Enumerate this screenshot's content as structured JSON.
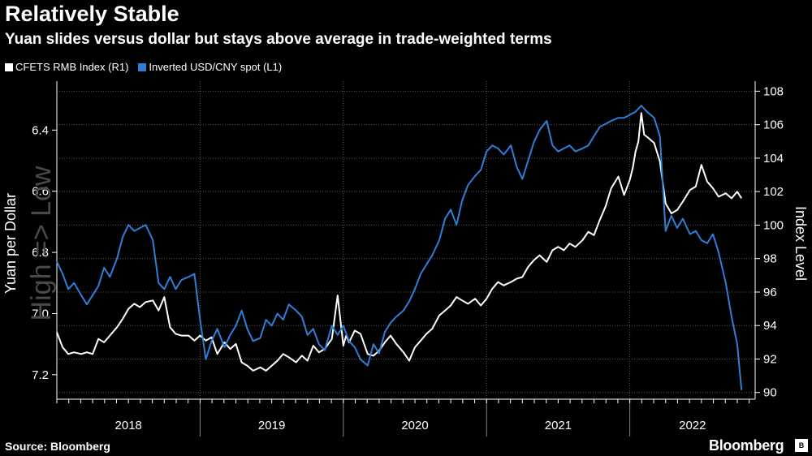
{
  "header": {
    "title": "Relatively Stable",
    "subtitle": "Yuan slides versus dollar but stays above average in trade-weighted terms"
  },
  "footer": {
    "source": "Source: Bloomberg",
    "brand": "Bloomberg"
  },
  "colors": {
    "cfets": "#ffffff",
    "usdcny": "#2f7ed8",
    "grid": "#5a5a5a",
    "background": "#000000"
  },
  "chart_data": {
    "type": "line",
    "title": "Relatively Stable",
    "subtitle": "Yuan slides versus dollar but stays above average in trade-weighted terms",
    "watermark": "High => Low",
    "x_ticks": [
      "2018",
      "2019",
      "2020",
      "2021",
      "2022"
    ],
    "x_range": [
      2018.0,
      2022.875
    ],
    "left_axis": {
      "label": "Yuan per Dollar",
      "ticks": [
        "6.4",
        "6.6",
        "6.8",
        "7.0",
        "7.2"
      ],
      "range": [
        7.28,
        6.24
      ],
      "inverted": true
    },
    "right_axis": {
      "label": "Index Level",
      "ticks": [
        "90",
        "92",
        "94",
        "96",
        "98",
        "100",
        "102",
        "104",
        "106",
        "108"
      ],
      "range": [
        89.6,
        108.6
      ]
    },
    "legend": "top-left",
    "series": [
      {
        "name": "CFETS RMB Index (R1)",
        "axis": "right",
        "points": [
          [
            2018.0,
            93.6
          ],
          [
            2018.04,
            92.7
          ],
          [
            2018.08,
            92.3
          ],
          [
            2018.12,
            92.4
          ],
          [
            2018.17,
            92.3
          ],
          [
            2018.21,
            92.4
          ],
          [
            2018.25,
            92.3
          ],
          [
            2018.29,
            93.2
          ],
          [
            2018.33,
            93.0
          ],
          [
            2018.37,
            93.4
          ],
          [
            2018.42,
            93.9
          ],
          [
            2018.46,
            94.4
          ],
          [
            2018.5,
            95.0
          ],
          [
            2018.54,
            95.3
          ],
          [
            2018.58,
            95.1
          ],
          [
            2018.62,
            95.4
          ],
          [
            2018.67,
            95.5
          ],
          [
            2018.71,
            94.9
          ],
          [
            2018.75,
            95.7
          ],
          [
            2018.79,
            93.9
          ],
          [
            2018.83,
            93.5
          ],
          [
            2018.87,
            93.4
          ],
          [
            2018.92,
            93.4
          ],
          [
            2018.96,
            93.1
          ],
          [
            2019.0,
            93.4
          ],
          [
            2019.04,
            93.1
          ],
          [
            2019.08,
            93.3
          ],
          [
            2019.12,
            92.3
          ],
          [
            2019.17,
            93.0
          ],
          [
            2019.21,
            92.6
          ],
          [
            2019.25,
            92.9
          ],
          [
            2019.29,
            91.8
          ],
          [
            2019.33,
            91.6
          ],
          [
            2019.37,
            91.3
          ],
          [
            2019.42,
            91.5
          ],
          [
            2019.46,
            91.3
          ],
          [
            2019.5,
            91.6
          ],
          [
            2019.54,
            91.9
          ],
          [
            2019.58,
            92.3
          ],
          [
            2019.62,
            92.1
          ],
          [
            2019.67,
            91.8
          ],
          [
            2019.71,
            92.2
          ],
          [
            2019.75,
            91.9
          ],
          [
            2019.79,
            92.8
          ],
          [
            2019.83,
            92.4
          ],
          [
            2019.87,
            92.6
          ],
          [
            2019.92,
            93.2
          ],
          [
            2019.96,
            95.8
          ],
          [
            2020.0,
            92.8
          ],
          [
            2020.02,
            93.4
          ],
          [
            2020.04,
            93.0
          ],
          [
            2020.08,
            93.7
          ],
          [
            2020.12,
            93.5
          ],
          [
            2020.17,
            92.3
          ],
          [
            2020.21,
            92.2
          ],
          [
            2020.25,
            92.5
          ],
          [
            2020.29,
            93.0
          ],
          [
            2020.33,
            93.4
          ],
          [
            2020.37,
            92.9
          ],
          [
            2020.42,
            92.4
          ],
          [
            2020.46,
            91.9
          ],
          [
            2020.5,
            92.7
          ],
          [
            2020.54,
            93.1
          ],
          [
            2020.58,
            93.5
          ],
          [
            2020.62,
            93.8
          ],
          [
            2020.67,
            94.6
          ],
          [
            2020.71,
            94.9
          ],
          [
            2020.75,
            95.2
          ],
          [
            2020.79,
            95.7
          ],
          [
            2020.83,
            95.5
          ],
          [
            2020.87,
            95.3
          ],
          [
            2020.92,
            95.6
          ],
          [
            2020.96,
            95.2
          ],
          [
            2021.0,
            95.6
          ],
          [
            2021.04,
            96.2
          ],
          [
            2021.08,
            96.6
          ],
          [
            2021.12,
            96.4
          ],
          [
            2021.17,
            96.6
          ],
          [
            2021.21,
            96.8
          ],
          [
            2021.25,
            96.9
          ],
          [
            2021.29,
            97.5
          ],
          [
            2021.33,
            97.9
          ],
          [
            2021.37,
            98.2
          ],
          [
            2021.42,
            97.8
          ],
          [
            2021.46,
            98.5
          ],
          [
            2021.5,
            98.7
          ],
          [
            2021.54,
            98.5
          ],
          [
            2021.58,
            98.9
          ],
          [
            2021.62,
            98.7
          ],
          [
            2021.67,
            99.1
          ],
          [
            2021.71,
            99.6
          ],
          [
            2021.75,
            99.4
          ],
          [
            2021.79,
            100.3
          ],
          [
            2021.83,
            101.1
          ],
          [
            2021.87,
            102.2
          ],
          [
            2021.92,
            102.9
          ],
          [
            2021.96,
            101.8
          ],
          [
            2022.0,
            102.7
          ],
          [
            2022.02,
            103.4
          ],
          [
            2022.04,
            104.4
          ],
          [
            2022.06,
            105.0
          ],
          [
            2022.08,
            106.7
          ],
          [
            2022.1,
            105.4
          ],
          [
            2022.13,
            105.2
          ],
          [
            2022.17,
            104.9
          ],
          [
            2022.21,
            103.8
          ],
          [
            2022.25,
            101.3
          ],
          [
            2022.29,
            100.7
          ],
          [
            2022.33,
            100.9
          ],
          [
            2022.37,
            101.4
          ],
          [
            2022.42,
            102.1
          ],
          [
            2022.46,
            102.3
          ],
          [
            2022.5,
            103.6
          ],
          [
            2022.54,
            102.6
          ],
          [
            2022.58,
            102.2
          ],
          [
            2022.62,
            101.7
          ],
          [
            2022.67,
            101.9
          ],
          [
            2022.71,
            101.6
          ],
          [
            2022.75,
            102.0
          ],
          [
            2022.78,
            101.6
          ]
        ]
      },
      {
        "name": "Inverted USD/CNY spot (L1)",
        "axis": "left",
        "points": [
          [
            2018.0,
            6.83
          ],
          [
            2018.04,
            6.87
          ],
          [
            2018.08,
            6.92
          ],
          [
            2018.12,
            6.9
          ],
          [
            2018.17,
            6.94
          ],
          [
            2018.21,
            6.97
          ],
          [
            2018.25,
            6.94
          ],
          [
            2018.29,
            6.91
          ],
          [
            2018.33,
            6.85
          ],
          [
            2018.37,
            6.88
          ],
          [
            2018.42,
            6.82
          ],
          [
            2018.46,
            6.75
          ],
          [
            2018.5,
            6.71
          ],
          [
            2018.54,
            6.73
          ],
          [
            2018.58,
            6.72
          ],
          [
            2018.62,
            6.71
          ],
          [
            2018.67,
            6.76
          ],
          [
            2018.71,
            6.9
          ],
          [
            2018.75,
            6.92
          ],
          [
            2018.79,
            6.88
          ],
          [
            2018.83,
            6.92
          ],
          [
            2018.87,
            6.89
          ],
          [
            2018.92,
            6.88
          ],
          [
            2018.96,
            6.87
          ],
          [
            2019.0,
            7.02
          ],
          [
            2019.04,
            7.15
          ],
          [
            2019.08,
            7.09
          ],
          [
            2019.12,
            7.05
          ],
          [
            2019.17,
            7.11
          ],
          [
            2019.21,
            7.07
          ],
          [
            2019.25,
            7.04
          ],
          [
            2019.29,
            6.99
          ],
          [
            2019.33,
            7.05
          ],
          [
            2019.37,
            7.09
          ],
          [
            2019.42,
            7.08
          ],
          [
            2019.46,
            7.02
          ],
          [
            2019.5,
            7.04
          ],
          [
            2019.54,
            7.0
          ],
          [
            2019.58,
            7.02
          ],
          [
            2019.62,
            6.97
          ],
          [
            2019.67,
            6.99
          ],
          [
            2019.71,
            7.01
          ],
          [
            2019.75,
            7.07
          ],
          [
            2019.79,
            7.05
          ],
          [
            2019.83,
            7.1
          ],
          [
            2019.87,
            7.12
          ],
          [
            2019.92,
            7.04
          ],
          [
            2019.96,
            7.07
          ],
          [
            2020.0,
            7.04
          ],
          [
            2020.04,
            7.09
          ],
          [
            2020.08,
            7.11
          ],
          [
            2020.12,
            7.15
          ],
          [
            2020.17,
            7.17
          ],
          [
            2020.21,
            7.1
          ],
          [
            2020.25,
            7.13
          ],
          [
            2020.29,
            7.06
          ],
          [
            2020.33,
            7.03
          ],
          [
            2020.37,
            7.01
          ],
          [
            2020.42,
            6.99
          ],
          [
            2020.46,
            6.96
          ],
          [
            2020.5,
            6.92
          ],
          [
            2020.54,
            6.87
          ],
          [
            2020.58,
            6.84
          ],
          [
            2020.62,
            6.81
          ],
          [
            2020.67,
            6.76
          ],
          [
            2020.71,
            6.69
          ],
          [
            2020.75,
            6.66
          ],
          [
            2020.79,
            6.71
          ],
          [
            2020.83,
            6.63
          ],
          [
            2020.87,
            6.58
          ],
          [
            2020.92,
            6.55
          ],
          [
            2020.96,
            6.53
          ],
          [
            2021.0,
            6.47
          ],
          [
            2021.04,
            6.45
          ],
          [
            2021.08,
            6.46
          ],
          [
            2021.12,
            6.48
          ],
          [
            2021.17,
            6.45
          ],
          [
            2021.21,
            6.52
          ],
          [
            2021.25,
            6.56
          ],
          [
            2021.29,
            6.5
          ],
          [
            2021.33,
            6.44
          ],
          [
            2021.37,
            6.4
          ],
          [
            2021.42,
            6.37
          ],
          [
            2021.46,
            6.45
          ],
          [
            2021.5,
            6.47
          ],
          [
            2021.54,
            6.46
          ],
          [
            2021.58,
            6.45
          ],
          [
            2021.62,
            6.47
          ],
          [
            2021.67,
            6.46
          ],
          [
            2021.71,
            6.45
          ],
          [
            2021.75,
            6.42
          ],
          [
            2021.79,
            6.39
          ],
          [
            2021.83,
            6.38
          ],
          [
            2021.87,
            6.37
          ],
          [
            2021.92,
            6.36
          ],
          [
            2021.96,
            6.36
          ],
          [
            2022.0,
            6.35
          ],
          [
            2022.04,
            6.34
          ],
          [
            2022.08,
            6.32
          ],
          [
            2022.12,
            6.34
          ],
          [
            2022.17,
            6.36
          ],
          [
            2022.21,
            6.42
          ],
          [
            2022.25,
            6.73
          ],
          [
            2022.29,
            6.68
          ],
          [
            2022.33,
            6.72
          ],
          [
            2022.37,
            6.69
          ],
          [
            2022.42,
            6.74
          ],
          [
            2022.46,
            6.73
          ],
          [
            2022.5,
            6.76
          ],
          [
            2022.54,
            6.77
          ],
          [
            2022.58,
            6.74
          ],
          [
            2022.62,
            6.8
          ],
          [
            2022.67,
            6.9
          ],
          [
            2022.71,
            7.01
          ],
          [
            2022.75,
            7.1
          ],
          [
            2022.78,
            7.25
          ]
        ]
      }
    ]
  }
}
